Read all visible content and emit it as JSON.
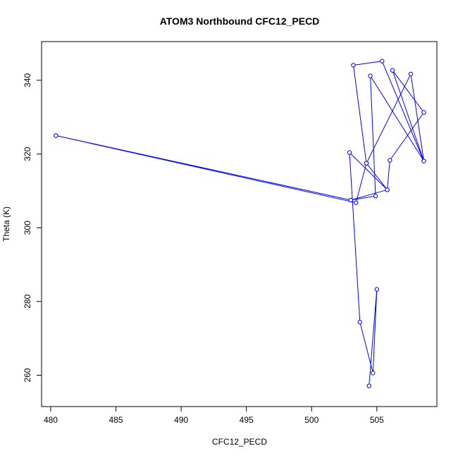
{
  "chart_data": {
    "type": "line",
    "title": "ATOM3 Northbound CFC12_PECD",
    "xlabel": "CFC12_PECD",
    "ylabel": "Theta (K)",
    "xlim": [
      479.3,
      509.6
    ],
    "ylim": [
      251.5,
      350.5
    ],
    "xticks": [
      480,
      485,
      490,
      495,
      500,
      505
    ],
    "yticks": [
      260,
      280,
      300,
      320,
      340
    ],
    "grid": false,
    "color": "#0000ff",
    "marker": "open-circle",
    "points": [
      {
        "x": 480.4,
        "y": 325.0
      },
      {
        "x": 503.4,
        "y": 306.8
      },
      {
        "x": 504.2,
        "y": 317.5
      },
      {
        "x": 507.6,
        "y": 341.7
      },
      {
        "x": 508.6,
        "y": 318.1
      },
      {
        "x": 504.5,
        "y": 341.2
      },
      {
        "x": 504.9,
        "y": 308.6
      },
      {
        "x": 503.0,
        "y": 307.5
      },
      {
        "x": 480.4,
        "y": 325.0
      },
      {
        "x": 503.0,
        "y": 307.5
      },
      {
        "x": 505.8,
        "y": 310.3
      },
      {
        "x": 506.0,
        "y": 318.3
      },
      {
        "x": 508.6,
        "y": 331.3
      },
      {
        "x": 506.2,
        "y": 342.7
      },
      {
        "x": 508.6,
        "y": 318.1
      },
      {
        "x": 505.4,
        "y": 345.2
      },
      {
        "x": 503.2,
        "y": 344.1
      },
      {
        "x": 504.2,
        "y": 317.5
      },
      {
        "x": 505.8,
        "y": 310.3
      },
      {
        "x": 502.9,
        "y": 320.4
      },
      {
        "x": 503.7,
        "y": 274.4
      },
      {
        "x": 504.7,
        "y": 260.6
      },
      {
        "x": 505.0,
        "y": 283.3
      },
      {
        "x": 504.4,
        "y": 257.1
      }
    ]
  }
}
